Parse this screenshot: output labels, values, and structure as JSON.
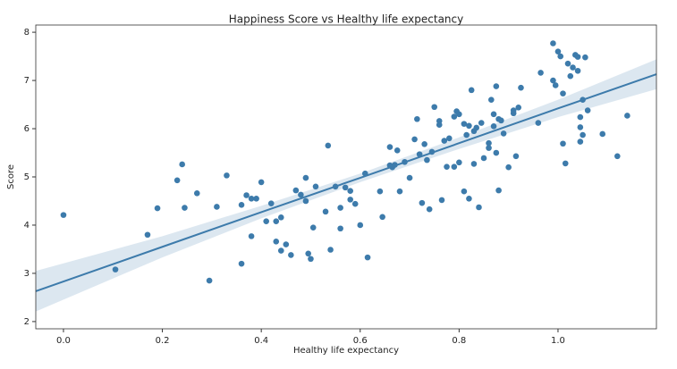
{
  "chart_data": {
    "type": "scatter",
    "title": "Happiness Score vs Healthy life expectancy",
    "x_label": "Healthy life expectancy",
    "y_label": "Score",
    "xlim": [
      -0.056,
      1.199
    ],
    "ylim": [
      1.85,
      8.15
    ],
    "xticks": [
      {
        "value": 0,
        "label": "0.0"
      },
      0.2,
      0.4,
      0.6,
      0.8,
      {
        "value": 1,
        "label": "1.0"
      }
    ],
    "yticks": [
      2,
      3,
      4,
      5,
      6,
      7,
      8
    ],
    "color": "#3d7bab",
    "x": [
      0.0,
      0.105,
      0.17,
      0.19,
      0.23,
      0.24,
      0.245,
      0.27,
      0.295,
      0.31,
      0.33,
      0.36,
      0.36,
      0.37,
      0.38,
      0.38,
      0.39,
      0.4,
      0.41,
      0.42,
      0.43,
      0.43,
      0.44,
      0.44,
      0.45,
      0.46,
      0.47,
      0.48,
      0.49,
      0.49,
      0.495,
      0.5,
      0.505,
      0.51,
      0.53,
      0.535,
      0.54,
      0.55,
      0.56,
      0.56,
      0.57,
      0.58,
      0.58,
      0.59,
      0.6,
      0.61,
      0.615,
      0.64,
      0.645,
      0.66,
      0.66,
      0.665,
      0.67,
      0.675,
      0.68,
      0.69,
      0.7,
      0.71,
      0.715,
      0.72,
      0.725,
      0.73,
      0.735,
      0.74,
      0.745,
      0.75,
      0.76,
      0.76,
      0.765,
      0.77,
      0.775,
      0.78,
      0.79,
      0.79,
      0.795,
      0.8,
      0.8,
      0.81,
      0.81,
      0.815,
      0.82,
      0.82,
      0.825,
      0.83,
      0.83,
      0.835,
      0.84,
      0.845,
      0.85,
      0.86,
      0.86,
      0.865,
      0.87,
      0.87,
      0.875,
      0.875,
      0.88,
      0.88,
      0.885,
      0.89,
      0.9,
      0.91,
      0.91,
      0.915,
      0.92,
      0.925,
      0.96,
      0.965,
      0.99,
      0.99,
      0.995,
      1.0,
      1.005,
      1.01,
      1.01,
      1.015,
      1.02,
      1.025,
      1.03,
      1.035,
      1.04,
      1.04,
      1.045,
      1.045,
      1.05,
      1.055,
      1.06,
      1.09,
      1.12,
      1.14,
      1.045,
      1.05
    ],
    "y": [
      4.21,
      3.08,
      3.8,
      4.35,
      4.93,
      5.26,
      4.36,
      4.66,
      2.85,
      4.38,
      5.03,
      4.42,
      3.2,
      4.62,
      4.55,
      3.77,
      4.55,
      4.89,
      4.08,
      4.45,
      4.08,
      3.66,
      3.47,
      4.16,
      3.6,
      3.38,
      4.72,
      4.63,
      4.98,
      4.5,
      3.41,
      3.3,
      3.95,
      4.8,
      4.28,
      5.65,
      3.49,
      4.8,
      4.36,
      3.93,
      4.78,
      4.71,
      4.53,
      4.44,
      4.0,
      5.07,
      3.33,
      4.7,
      4.17,
      5.62,
      5.24,
      5.2,
      5.25,
      5.55,
      4.7,
      5.31,
      4.98,
      5.78,
      6.2,
      5.47,
      4.46,
      5.68,
      5.35,
      4.33,
      5.52,
      6.45,
      6.16,
      6.08,
      4.52,
      5.75,
      5.21,
      5.8,
      6.25,
      5.21,
      6.36,
      6.3,
      5.3,
      6.1,
      4.7,
      5.87,
      6.06,
      4.55,
      6.8,
      5.95,
      5.27,
      6.02,
      4.37,
      6.12,
      5.39,
      5.7,
      5.6,
      6.6,
      6.3,
      6.05,
      6.88,
      5.5,
      6.2,
      4.72,
      6.17,
      5.9,
      5.2,
      6.38,
      6.32,
      5.43,
      6.44,
      6.85,
      6.12,
      7.16,
      7.77,
      7.0,
      6.9,
      7.6,
      7.5,
      5.69,
      6.73,
      5.28,
      7.35,
      7.09,
      7.27,
      7.53,
      7.2,
      7.49,
      6.24,
      5.73,
      6.6,
      7.48,
      6.38,
      5.89,
      5.43,
      6.27,
      6.03,
      5.87
    ],
    "regression": {
      "color": "#3d7bab",
      "x": [
        -0.056,
        0.2,
        0.4,
        0.6,
        0.8,
        1.0,
        1.199
      ],
      "y": [
        2.63,
        3.55,
        4.27,
        4.98,
        5.7,
        6.42,
        7.13
      ],
      "lower": [
        2.21,
        3.33,
        4.14,
        4.89,
        5.58,
        6.24,
        6.82
      ],
      "upper": [
        3.05,
        3.77,
        4.4,
        5.07,
        5.82,
        6.6,
        7.44
      ]
    }
  }
}
